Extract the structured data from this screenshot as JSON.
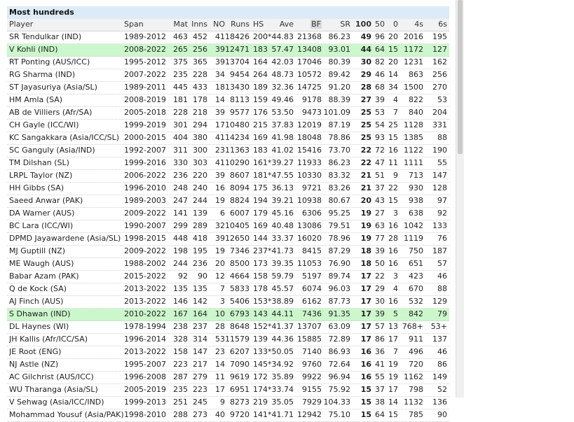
{
  "table": {
    "caption": "Most hundreds",
    "columns": [
      "Player",
      "Span",
      "Mat",
      "Inns",
      "NO",
      "Runs",
      "HS",
      "Ave",
      "BF",
      "SR",
      "100",
      "50",
      "0",
      "4s",
      "6s"
    ],
    "rows": [
      {
        "cells": [
          "SR Tendulkar (IND)",
          "1989-2012",
          "463",
          "452",
          "41",
          "18426",
          "200*",
          "44.83",
          "21368",
          "86.23",
          "49",
          "96",
          "20",
          "2016",
          "195"
        ],
        "highlight": false
      },
      {
        "cells": [
          "V Kohli (IND)",
          "2008-2022",
          "265",
          "256",
          "39",
          "12471",
          "183",
          "57.47",
          "13408",
          "93.01",
          "44",
          "64",
          "15",
          "1172",
          "127"
        ],
        "highlight": true
      },
      {
        "cells": [
          "RT Ponting (AUS/ICC)",
          "1995-2012",
          "375",
          "365",
          "39",
          "13704",
          "164",
          "42.03",
          "17046",
          "80.39",
          "30",
          "82",
          "20",
          "1231",
          "162"
        ],
        "highlight": false
      },
      {
        "cells": [
          "RG Sharma (IND)",
          "2007-2022",
          "235",
          "228",
          "34",
          "9454",
          "264",
          "48.73",
          "10572",
          "89.42",
          "29",
          "46",
          "14",
          "863",
          "256"
        ],
        "highlight": false
      },
      {
        "cells": [
          "ST Jayasuriya (Asia/SL)",
          "1989-2011",
          "445",
          "433",
          "18",
          "13430",
          "189",
          "32.36",
          "14725",
          "91.20",
          "28",
          "68",
          "34",
          "1500",
          "270"
        ],
        "highlight": false
      },
      {
        "cells": [
          "HM Amla (SA)",
          "2008-2019",
          "181",
          "178",
          "14",
          "8113",
          "159",
          "49.46",
          "9178",
          "88.39",
          "27",
          "39",
          "4",
          "822",
          "53"
        ],
        "highlight": false
      },
      {
        "cells": [
          "AB de Villiers (Afr/SA)",
          "2005-2018",
          "228",
          "218",
          "39",
          "9577",
          "176",
          "53.50",
          "9473",
          "101.09",
          "25",
          "53",
          "7",
          "840",
          "204"
        ],
        "highlight": false
      },
      {
        "cells": [
          "CH Gayle (ICC/WI)",
          "1999-2019",
          "301",
          "294",
          "17",
          "10480",
          "215",
          "37.83",
          "12019",
          "87.19",
          "25",
          "54",
          "25",
          "1128",
          "331"
        ],
        "highlight": false
      },
      {
        "cells": [
          "KC Sangakkara (Asia/ICC/SL)",
          "2000-2015",
          "404",
          "380",
          "41",
          "14234",
          "169",
          "41.98",
          "18048",
          "78.86",
          "25",
          "93",
          "15",
          "1385",
          "88"
        ],
        "highlight": false
      },
      {
        "cells": [
          "SC Ganguly (Asia/IND)",
          "1992-2007",
          "311",
          "300",
          "23",
          "11363",
          "183",
          "41.02",
          "15416",
          "73.70",
          "22",
          "72",
          "16",
          "1122",
          "190"
        ],
        "highlight": false
      },
      {
        "cells": [
          "TM Dilshan (SL)",
          "1999-2016",
          "330",
          "303",
          "41",
          "10290",
          "161*",
          "39.27",
          "11933",
          "86.23",
          "22",
          "47",
          "11",
          "1111",
          "55"
        ],
        "highlight": false
      },
      {
        "cells": [
          "LRPL Taylor (NZ)",
          "2006-2022",
          "236",
          "220",
          "39",
          "8607",
          "181*",
          "47.55",
          "10330",
          "83.32",
          "21",
          "51",
          "9",
          "713",
          "147"
        ],
        "highlight": false
      },
      {
        "cells": [
          "HH Gibbs (SA)",
          "1996-2010",
          "248",
          "240",
          "16",
          "8094",
          "175",
          "36.13",
          "9721",
          "83.26",
          "21",
          "37",
          "22",
          "930",
          "128"
        ],
        "highlight": false
      },
      {
        "cells": [
          "Saeed Anwar (PAK)",
          "1989-2003",
          "247",
          "244",
          "19",
          "8824",
          "194",
          "39.21",
          "10938",
          "80.67",
          "20",
          "43",
          "15",
          "938",
          "97"
        ],
        "highlight": false
      },
      {
        "cells": [
          "DA Warner (AUS)",
          "2009-2022",
          "141",
          "139",
          "6",
          "6007",
          "179",
          "45.16",
          "6306",
          "95.25",
          "19",
          "27",
          "3",
          "638",
          "92"
        ],
        "highlight": false
      },
      {
        "cells": [
          "BC Lara (ICC/WI)",
          "1990-2007",
          "299",
          "289",
          "32",
          "10405",
          "169",
          "40.48",
          "13086",
          "79.51",
          "19",
          "63",
          "16",
          "1042",
          "133"
        ],
        "highlight": false
      },
      {
        "cells": [
          "DPMD Jayawardene (Asia/SL)",
          "1998-2015",
          "448",
          "418",
          "39",
          "12650",
          "144",
          "33.37",
          "16020",
          "78.96",
          "19",
          "77",
          "28",
          "1119",
          "76"
        ],
        "highlight": false
      },
      {
        "cells": [
          "MJ Guptill (NZ)",
          "2009-2022",
          "198",
          "195",
          "19",
          "7346",
          "237*",
          "41.73",
          "8415",
          "87.29",
          "18",
          "39",
          "16",
          "750",
          "187"
        ],
        "highlight": false
      },
      {
        "cells": [
          "ME Waugh (AUS)",
          "1988-2002",
          "244",
          "236",
          "20",
          "8500",
          "173",
          "39.35",
          "11053",
          "76.90",
          "18",
          "50",
          "16",
          "651",
          "57"
        ],
        "highlight": false
      },
      {
        "cells": [
          "Babar Azam (PAK)",
          "2015-2022",
          "92",
          "90",
          "12",
          "4664",
          "158",
          "59.79",
          "5197",
          "89.74",
          "17",
          "22",
          "3",
          "423",
          "46"
        ],
        "highlight": false
      },
      {
        "cells": [
          "Q de Kock (SA)",
          "2013-2022",
          "135",
          "135",
          "7",
          "5833",
          "178",
          "45.57",
          "6074",
          "96.03",
          "17",
          "29",
          "4",
          "670",
          "88"
        ],
        "highlight": false
      },
      {
        "cells": [
          "AJ Finch (AUS)",
          "2013-2022",
          "146",
          "142",
          "3",
          "5406",
          "153*",
          "38.89",
          "6162",
          "87.73",
          "17",
          "30",
          "16",
          "532",
          "129"
        ],
        "highlight": false
      },
      {
        "cells": [
          "S Dhawan (IND)",
          "2010-2022",
          "167",
          "164",
          "10",
          "6793",
          "143",
          "44.11",
          "7436",
          "91.35",
          "17",
          "39",
          "5",
          "842",
          "79"
        ],
        "highlight": true
      },
      {
        "cells": [
          "DL Haynes (WI)",
          "1978-1994",
          "238",
          "237",
          "28",
          "8648",
          "152*",
          "41.37",
          "13707",
          "63.09",
          "17",
          "57",
          "13",
          "768+",
          "53+"
        ],
        "highlight": false
      },
      {
        "cells": [
          "JH Kallis (Afr/ICC/SA)",
          "1996-2014",
          "328",
          "314",
          "53",
          "11579",
          "139",
          "44.36",
          "15885",
          "72.89",
          "17",
          "86",
          "17",
          "911",
          "137"
        ],
        "highlight": false
      },
      {
        "cells": [
          "JE Root (ENG)",
          "2013-2022",
          "158",
          "147",
          "23",
          "6207",
          "133*",
          "50.05",
          "7140",
          "86.93",
          "16",
          "36",
          "7",
          "496",
          "46"
        ],
        "highlight": false
      },
      {
        "cells": [
          "NJ Astle (NZ)",
          "1995-2007",
          "223",
          "217",
          "14",
          "7090",
          "145*",
          "34.92",
          "9760",
          "72.64",
          "16",
          "41",
          "19",
          "720",
          "86"
        ],
        "highlight": false
      },
      {
        "cells": [
          "AC Gilchrist (AUS/ICC)",
          "1996-2008",
          "287",
          "279",
          "11",
          "9619",
          "172",
          "35.89",
          "9922",
          "96.94",
          "16",
          "55",
          "19",
          "1162",
          "149"
        ],
        "highlight": false
      },
      {
        "cells": [
          "WU Tharanga (Asia/SL)",
          "2005-2019",
          "235",
          "223",
          "17",
          "6951",
          "174*",
          "33.74",
          "9155",
          "75.92",
          "15",
          "37",
          "17",
          "798",
          "52"
        ],
        "highlight": false
      },
      {
        "cells": [
          "V Sehwag (Asia/ICC/IND)",
          "1999-2013",
          "251",
          "245",
          "9",
          "8273",
          "219",
          "35.05",
          "7929",
          "104.33",
          "15",
          "38",
          "14",
          "1132",
          "136"
        ],
        "highlight": false
      },
      {
        "cells": [
          "Mohammad Yousuf (Asia/PAK)",
          "1998-2010",
          "288",
          "273",
          "40",
          "9720",
          "141*",
          "41.71",
          "12942",
          "75.10",
          "15",
          "64",
          "15",
          "785",
          "90"
        ],
        "highlight": false
      }
    ]
  }
}
